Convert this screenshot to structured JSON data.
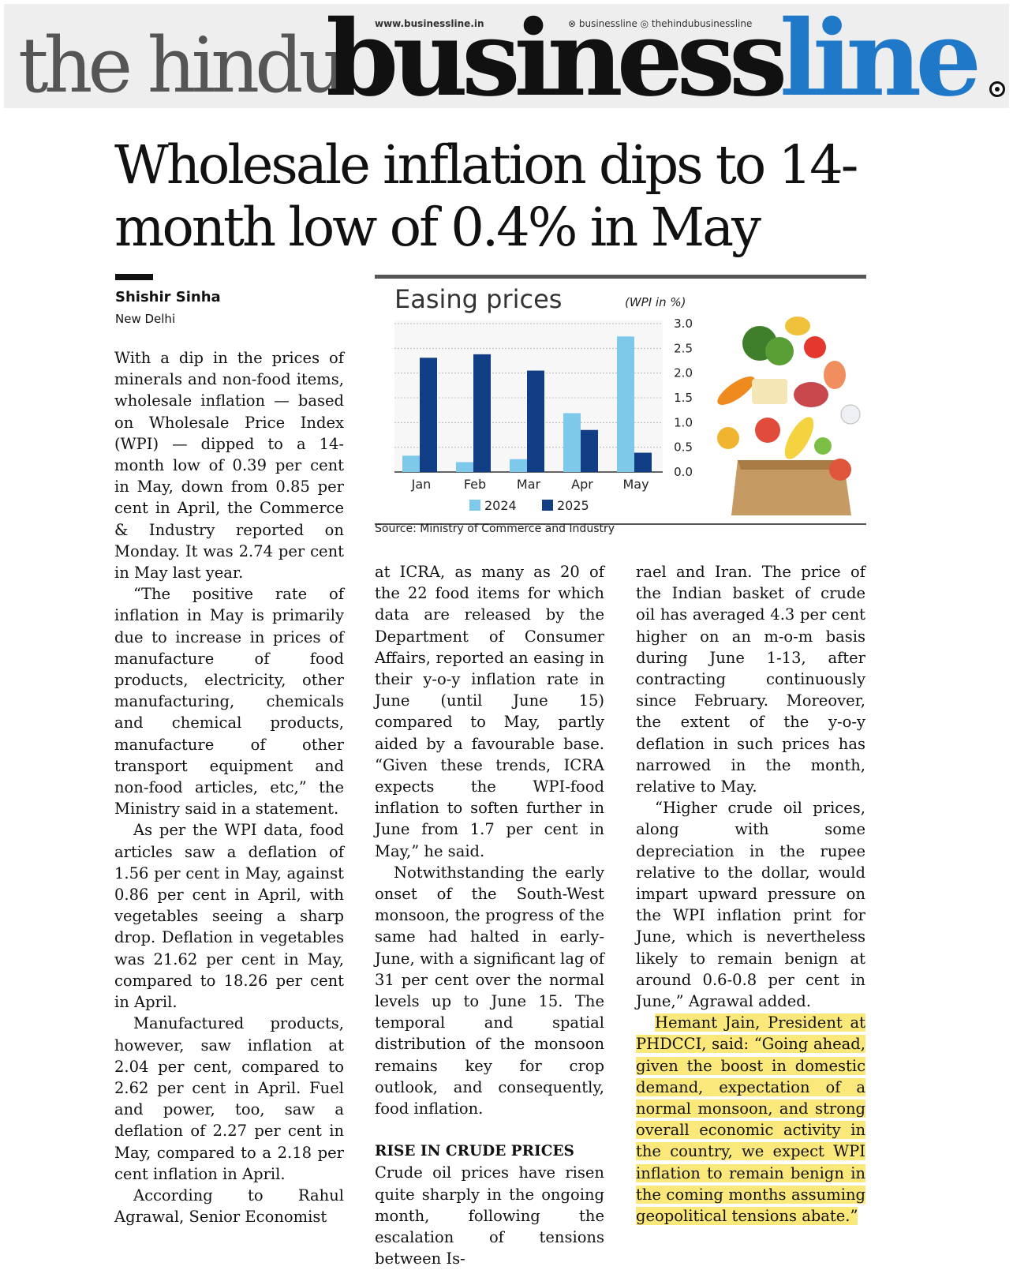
{
  "masthead": {
    "url": "www.businessline.in",
    "social": "⊗ businessline  ◎ thehindubusinessline",
    "brand_the_hindu": "the hindu",
    "brand_business": "business",
    "brand_line": "line"
  },
  "headline": "Wholesale inflation dips to 14-month low of 0.4% in May",
  "byline": {
    "author": "Shishir Sinha",
    "location": "New Delhi"
  },
  "chart_data": {
    "type": "bar",
    "title": "Easing prices",
    "ylabel": "(WPI in %)",
    "categories": [
      "Jan",
      "Feb",
      "Mar",
      "Apr",
      "May"
    ],
    "series": [
      {
        "name": "2024",
        "color": "#7ec8ea",
        "values": [
          0.33,
          0.2,
          0.26,
          1.19,
          2.74
        ]
      },
      {
        "name": "2025",
        "color": "#123e85",
        "values": [
          2.31,
          2.38,
          2.05,
          0.85,
          0.39
        ]
      }
    ],
    "ylim": [
      0,
      3.0
    ],
    "yticks": [
      "3.0",
      "2.5",
      "2.0",
      "1.5",
      "1.0",
      "0.5",
      "0.0"
    ],
    "grid": true,
    "legend": "bottom",
    "source": "Source: Ministry of Commerce and Industry"
  },
  "article": {
    "col1": [
      "With a dip in the prices of minerals and non-food items, wholesale inflation — based on Wholesale Price Index (WPI) — dipped to a 14-month low of 0.39 per cent in May, down from 0.85 per cent in April, the Commerce & Industry reported on Monday. It was 2.74 per cent in May last year.",
      "“The positive rate of inflation in May is primarily due to increase in prices of manufacture of food products, electricity, other manufacturing, chemicals and chemical products, manufacture of other transport equipment and non-food articles, etc,” the Ministry said in a statement.",
      "As per the WPI data, food articles saw a deflation of 1.56 per cent in May, against 0.86 per cent in April, with vegetables seeing a sharp drop. Deflation in vegetables was 21.62 per cent in May, compared to 18.26 per cent in April.",
      "Manufactured products, however, saw inflation at 2.04 per cent, compared to 2.62 per cent in April. Fuel and power, too, saw a deflation of 2.27 per cent in May, compared to a 2.18 per cent inflation in April.",
      "According to Rahul Agrawal, Senior Economist"
    ],
    "col2": [
      "at ICRA, as many as 20 of the 22 food items for which data are released by the Department of Consumer Affairs, reported an easing in their y-o-y inflation rate in June (until June 15) compared to May, partly aided by a favourable base. “Given these trends, ICRA expects the WPI-food inflation to soften further in June from 1.7 per cent in May,” he said.",
      "Notwithstanding the early onset of the South-West monsoon, the progress of the same had halted in early-June, with a significant lag of 31 per cent over the normal levels up to June 15. The temporal and spatial distribution of the monsoon remains key for crop outlook, and consequently, food inflation."
    ],
    "subhead": "RISE IN CRUDE PRICES",
    "col2_after": "Crude oil prices have risen quite sharply in the ongoing month, following the escalation of tensions between Is-",
    "col3": [
      "rael and Iran. The price of the Indian basket of crude oil has averaged 4.3 per cent higher on an m-o-m basis during June 1-13, after contracting continuously since February. Moreover, the extent of the y-o-y deflation in such prices has narrowed in the month, relative to May.",
      "“Higher crude oil prices, along with some depreciation in the rupee relative to the dollar, would impart upward pressure on the WPI inflation print for June, which is nevertheless likely to remain benign at around 0.6-0.8 per cent in June,” Agrawal added."
    ],
    "col3_highlight": "Hemant Jain, President at PHDCCI, said: “Going ahead, given the boost in domestic demand, expectation of a normal monsoon, and strong overall economic activity in the country, we expect WPI inflation to remain benign in the coming months assuming geopolitical tensions abate.”"
  },
  "colors": {
    "brand_blue": "#1f78c8",
    "highlight": "#fbe87a",
    "bar_2024": "#7ec8ea",
    "bar_2025": "#123e85"
  }
}
